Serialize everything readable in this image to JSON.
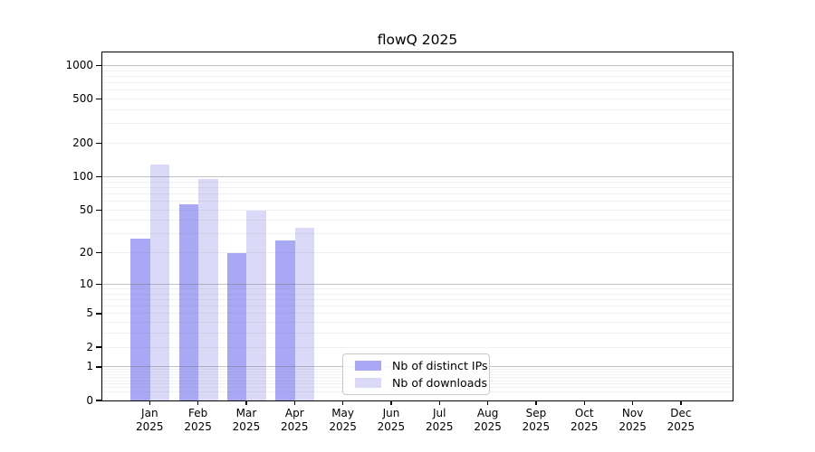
{
  "chart_data": {
    "type": "bar",
    "title": "flowQ 2025",
    "categories": [
      "Jan 2025",
      "Feb 2025",
      "Mar 2025",
      "Apr 2025",
      "May 2025",
      "Jun 2025",
      "Jul 2025",
      "Aug 2025",
      "Sep 2025",
      "Oct 2025",
      "Nov 2025",
      "Dec 2025"
    ],
    "series": [
      {
        "name": "Nb of distinct IPs",
        "color": "#a8a8f5",
        "values": [
          27,
          56,
          20,
          26,
          0,
          0,
          0,
          0,
          0,
          0,
          0,
          0
        ]
      },
      {
        "name": "Nb of downloads",
        "color": "#dadaf8",
        "values": [
          128,
          96,
          49,
          34,
          0,
          0,
          0,
          0,
          0,
          0,
          0,
          0
        ]
      }
    ],
    "y_ticks": [
      0,
      1,
      2,
      5,
      10,
      20,
      50,
      100,
      200,
      500,
      1000
    ],
    "y_scale": "log-like (log10 of 1+value), zero at baseline",
    "ylim": [
      0,
      1300
    ],
    "xlabel": "",
    "ylabel": "",
    "grid": "horizontal major gridlines at 1,10,100,1000 plus faint minor gridlines",
    "legend": {
      "position": "inside plot, lower center-left",
      "labels": [
        "Nb of distinct IPs",
        "Nb of downloads"
      ]
    }
  }
}
